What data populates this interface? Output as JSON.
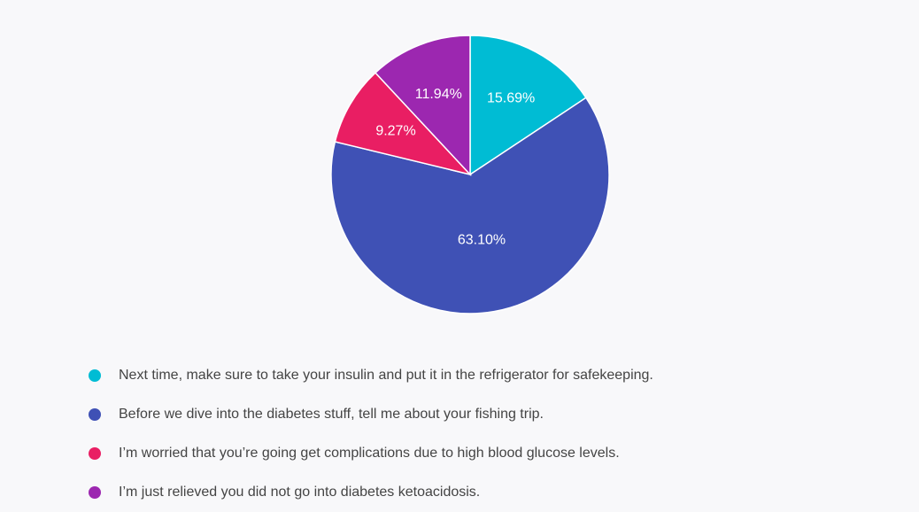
{
  "chart_data": {
    "type": "pie",
    "title": "",
    "start_angle_deg": 0,
    "direction": "clockwise",
    "legend_placement": "bottom-left",
    "slices": [
      {
        "name": "Next time, make sure to take your insulin and put it in the refrigerator for safekeeping.",
        "value": 15.69,
        "label": "15.69%",
        "color": "#00bcd4"
      },
      {
        "name": "Before we dive into the diabetes stuff, tell me about your fishing trip.",
        "value": 63.1,
        "label": "63.10%",
        "color": "#3f51b5"
      },
      {
        "name": "I’m worried that you’re going get complications due to high blood glucose levels.",
        "value": 9.27,
        "label": "9.27%",
        "color": "#e91e63"
      },
      {
        "name": "I’m just relieved you did not go into diabetes ketoacidosis.",
        "value": 11.94,
        "label": "11.94%",
        "color": "#9c27b0"
      }
    ]
  }
}
